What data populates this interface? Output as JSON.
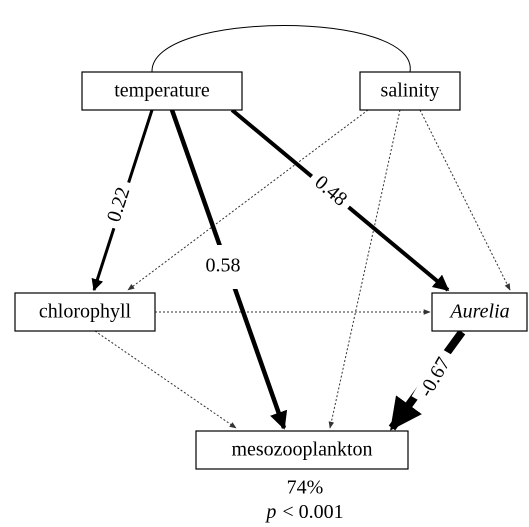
{
  "nodes": [
    {
      "label": "temperature"
    },
    {
      "label": "salinity"
    },
    {
      "label": "chlorophyll"
    },
    {
      "label": "Aurelia"
    },
    {
      "label": "mesozooplankton"
    }
  ],
  "edges": [
    {
      "label": "0.22"
    },
    {
      "label": "0.58"
    },
    {
      "label": "0.48"
    },
    {
      "label": "-0.67"
    }
  ],
  "stats": {
    "r2": "74%",
    "p_symbol": "p",
    "p_value": "< 0.001"
  }
}
